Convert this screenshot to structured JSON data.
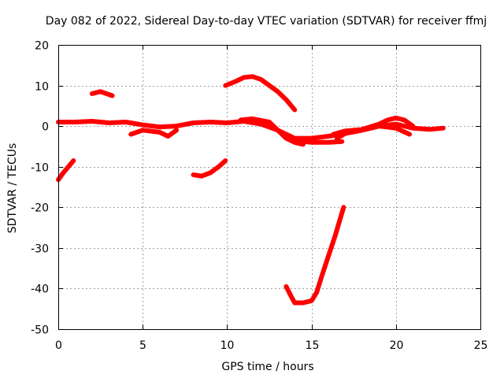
{
  "chart_data": {
    "type": "line",
    "title": "Day 082 of 2022, Sidereal Day-to-day VTEC variation (SDTVAR) for receiver ffmj",
    "xlabel": "GPS time / hours",
    "ylabel": "SDTVAR / TECUs",
    "xlim": [
      0,
      25
    ],
    "ylim": [
      -50,
      20
    ],
    "xticks": [
      0,
      5,
      10,
      15,
      20,
      25
    ],
    "yticks": [
      -50,
      -40,
      -30,
      -20,
      -10,
      0,
      10,
      20
    ],
    "grid": true,
    "series_color": "#ff0000",
    "series": [
      {
        "name": "seg-1",
        "x": [
          0.0,
          0.3,
          0.6,
          0.9
        ],
        "y": [
          -13.2,
          -11.5,
          -10.0,
          -8.5
        ]
      },
      {
        "name": "seg-2",
        "x": [
          0.0,
          1,
          2,
          3,
          4,
          5,
          6,
          7,
          8,
          9,
          10,
          11,
          12,
          13,
          14,
          15,
          16,
          17,
          18,
          19,
          20,
          21,
          22,
          22.8
        ],
        "y": [
          1.0,
          1.0,
          1.2,
          0.8,
          1.0,
          0.3,
          -0.2,
          0.0,
          0.8,
          1.0,
          0.8,
          1.2,
          0.5,
          -1.0,
          -3.0,
          -3.0,
          -2.5,
          -1.8,
          -1.0,
          0.0,
          0.5,
          -0.5,
          -0.8,
          -0.5
        ]
      },
      {
        "name": "seg-3",
        "x": [
          2.0,
          2.5,
          3.2
        ],
        "y": [
          8.0,
          8.5,
          7.5
        ]
      },
      {
        "name": "seg-4",
        "x": [
          4.3,
          5,
          6,
          6.5,
          7
        ],
        "y": [
          -2.0,
          -1.0,
          -1.5,
          -2.5,
          -1.0
        ]
      },
      {
        "name": "seg-5",
        "x": [
          8.0,
          8.5,
          9.0,
          9.5,
          9.9
        ],
        "y": [
          -12.0,
          -12.3,
          -11.5,
          -10.0,
          -8.5
        ]
      },
      {
        "name": "seg-6",
        "x": [
          9.9,
          10.5,
          11,
          11.5,
          12,
          12.5,
          13,
          13.5,
          14.0
        ],
        "y": [
          10.0,
          11.0,
          12.0,
          12.2,
          11.5,
          10.0,
          8.5,
          6.5,
          4.0
        ]
      },
      {
        "name": "seg-7",
        "x": [
          10.8,
          11.5,
          12.5,
          13,
          13.5,
          14,
          14.5
        ],
        "y": [
          1.5,
          1.8,
          1.0,
          -1.0,
          -3.0,
          -4.0,
          -4.5
        ]
      },
      {
        "name": "seg-8",
        "x": [
          14.0,
          15,
          16,
          16.8
        ],
        "y": [
          -3.5,
          -4.0,
          -4.0,
          -3.8
        ]
      },
      {
        "name": "seg-9",
        "x": [
          13.5,
          13.8,
          14,
          14.5,
          15,
          15.3,
          15.6,
          16.0,
          16.4,
          16.9
        ],
        "y": [
          -39.5,
          -42.0,
          -43.5,
          -43.5,
          -43.0,
          -41.0,
          -37.0,
          -32.0,
          -27.0,
          -20.0
        ]
      },
      {
        "name": "seg-10",
        "x": [
          16.3,
          17,
          18,
          19,
          19.5,
          20,
          20.5,
          21.0
        ],
        "y": [
          -2.0,
          -1.2,
          -0.8,
          0.5,
          1.5,
          2.0,
          1.5,
          0.0
        ]
      },
      {
        "name": "seg-11",
        "x": [
          16.5,
          17,
          18,
          19,
          20,
          20.8
        ],
        "y": [
          -3.0,
          -1.8,
          -1.0,
          0.0,
          -0.5,
          -2.0
        ]
      }
    ]
  }
}
